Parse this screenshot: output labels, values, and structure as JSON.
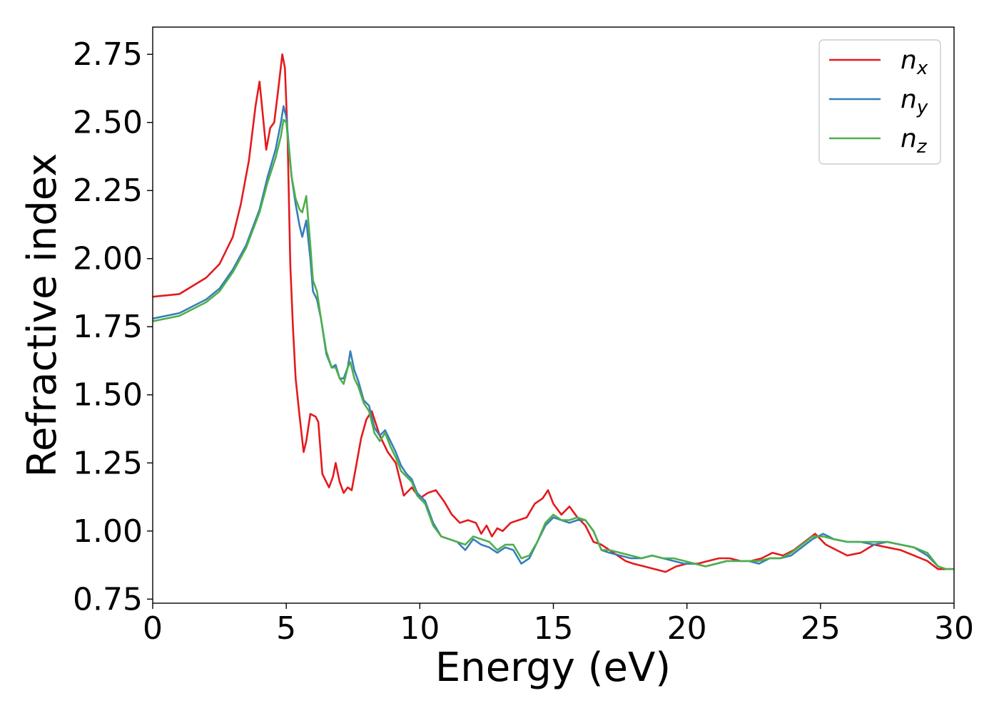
{
  "chart_data": {
    "type": "line",
    "xlabel": "Energy (eV)",
    "ylabel": "Refractive index",
    "xlim": [
      0,
      30
    ],
    "ylim": [
      0.735,
      2.85
    ],
    "xticks": [
      "0",
      "5",
      "10",
      "15",
      "20",
      "25",
      "30"
    ],
    "yticks": [
      "0.75",
      "1.00",
      "1.25",
      "1.50",
      "1.75",
      "2.00",
      "2.25",
      "2.50",
      "2.75"
    ],
    "grid": false,
    "legend_position": "top-right",
    "series": [
      {
        "name": "n",
        "subscript": "x",
        "color": "#e41a1c",
        "x": [
          0,
          1,
          2,
          2.5,
          3,
          3.3,
          3.6,
          3.85,
          4.0,
          4.1,
          4.25,
          4.4,
          4.55,
          4.7,
          4.85,
          4.95,
          5.05,
          5.15,
          5.25,
          5.35,
          5.5,
          5.65,
          5.75,
          5.9,
          6.1,
          6.2,
          6.35,
          6.5,
          6.6,
          6.75,
          6.85,
          7.0,
          7.15,
          7.3,
          7.45,
          7.6,
          7.8,
          8.0,
          8.2,
          8.5,
          8.8,
          9.1,
          9.4,
          9.7,
          10.0,
          10.3,
          10.6,
          10.9,
          11.2,
          11.5,
          11.8,
          12.1,
          12.3,
          12.5,
          12.7,
          12.9,
          13.1,
          13.4,
          13.7,
          14.0,
          14.3,
          14.6,
          14.8,
          15.0,
          15.3,
          15.6,
          15.9,
          16.2,
          16.5,
          16.8,
          17.1,
          17.4,
          17.7,
          18.0,
          18.4,
          18.8,
          19.2,
          19.6,
          20.0,
          20.4,
          20.8,
          21.2,
          21.6,
          22.0,
          22.4,
          22.8,
          23.2,
          23.6,
          24.0,
          24.4,
          24.8,
          25.2,
          25.6,
          26.0,
          26.5,
          27.0,
          27.5,
          28.0,
          28.5,
          29.0,
          29.4,
          29.7,
          30.0
        ],
        "y": [
          1.86,
          1.87,
          1.93,
          1.98,
          2.08,
          2.2,
          2.36,
          2.56,
          2.65,
          2.55,
          2.4,
          2.48,
          2.5,
          2.62,
          2.75,
          2.7,
          2.45,
          1.98,
          1.75,
          1.56,
          1.42,
          1.29,
          1.33,
          1.43,
          1.42,
          1.4,
          1.21,
          1.18,
          1.16,
          1.2,
          1.25,
          1.18,
          1.14,
          1.16,
          1.15,
          1.23,
          1.34,
          1.41,
          1.44,
          1.35,
          1.29,
          1.25,
          1.13,
          1.16,
          1.12,
          1.14,
          1.15,
          1.11,
          1.06,
          1.03,
          1.04,
          1.03,
          0.99,
          1.02,
          0.98,
          1.01,
          1.0,
          1.03,
          1.04,
          1.05,
          1.1,
          1.12,
          1.15,
          1.1,
          1.06,
          1.09,
          1.05,
          1.02,
          0.96,
          0.95,
          0.93,
          0.91,
          0.89,
          0.88,
          0.87,
          0.86,
          0.85,
          0.87,
          0.88,
          0.88,
          0.89,
          0.9,
          0.9,
          0.89,
          0.89,
          0.9,
          0.92,
          0.91,
          0.93,
          0.96,
          0.99,
          0.95,
          0.93,
          0.91,
          0.92,
          0.95,
          0.94,
          0.93,
          0.91,
          0.89,
          0.86,
          0.86,
          0.86
        ]
      },
      {
        "name": "n",
        "subscript": "y",
        "color": "#377eb8",
        "x": [
          0,
          1,
          2,
          2.5,
          3,
          3.5,
          4.0,
          4.3,
          4.6,
          4.8,
          4.9,
          5.0,
          5.1,
          5.2,
          5.35,
          5.5,
          5.6,
          5.75,
          5.9,
          6.0,
          6.15,
          6.3,
          6.5,
          6.7,
          6.85,
          7.0,
          7.15,
          7.3,
          7.4,
          7.55,
          7.7,
          7.9,
          8.1,
          8.3,
          8.5,
          8.7,
          8.9,
          9.1,
          9.3,
          9.5,
          9.7,
          9.9,
          10.2,
          10.5,
          10.8,
          11.1,
          11.4,
          11.7,
          12.0,
          12.3,
          12.6,
          12.9,
          13.2,
          13.5,
          13.8,
          14.1,
          14.4,
          14.7,
          15.0,
          15.3,
          15.6,
          15.9,
          16.2,
          16.5,
          16.8,
          17.1,
          17.5,
          17.9,
          18.3,
          18.7,
          19.1,
          19.5,
          19.9,
          20.3,
          20.7,
          21.1,
          21.5,
          21.9,
          22.3,
          22.7,
          23.1,
          23.5,
          23.9,
          24.3,
          24.7,
          25.1,
          25.5,
          26.0,
          26.5,
          27.0,
          27.5,
          28.0,
          28.5,
          29.0,
          29.4,
          29.7,
          30.0
        ],
        "y": [
          1.78,
          1.8,
          1.85,
          1.89,
          1.96,
          2.05,
          2.18,
          2.3,
          2.4,
          2.5,
          2.56,
          2.52,
          2.41,
          2.3,
          2.2,
          2.12,
          2.08,
          2.14,
          2.0,
          1.88,
          1.85,
          1.78,
          1.65,
          1.6,
          1.61,
          1.56,
          1.56,
          1.6,
          1.66,
          1.59,
          1.55,
          1.48,
          1.46,
          1.38,
          1.35,
          1.37,
          1.33,
          1.29,
          1.24,
          1.21,
          1.19,
          1.14,
          1.11,
          1.03,
          0.98,
          0.97,
          0.96,
          0.93,
          0.97,
          0.95,
          0.94,
          0.92,
          0.94,
          0.93,
          0.88,
          0.9,
          0.96,
          1.02,
          1.05,
          1.04,
          1.03,
          1.04,
          1.04,
          1.0,
          0.93,
          0.92,
          0.91,
          0.9,
          0.9,
          0.91,
          0.9,
          0.89,
          0.88,
          0.88,
          0.87,
          0.88,
          0.89,
          0.89,
          0.89,
          0.88,
          0.9,
          0.9,
          0.91,
          0.94,
          0.97,
          0.99,
          0.97,
          0.96,
          0.96,
          0.95,
          0.96,
          0.95,
          0.94,
          0.91,
          0.87,
          0.86,
          0.86
        ]
      },
      {
        "name": "n",
        "subscript": "z",
        "color": "#4daf4a",
        "x": [
          0,
          1,
          2,
          2.5,
          3,
          3.5,
          4.0,
          4.3,
          4.6,
          4.8,
          4.9,
          5.0,
          5.1,
          5.2,
          5.35,
          5.5,
          5.6,
          5.75,
          5.9,
          6.0,
          6.15,
          6.3,
          6.5,
          6.7,
          6.85,
          7.0,
          7.15,
          7.3,
          7.4,
          7.55,
          7.7,
          7.9,
          8.1,
          8.3,
          8.5,
          8.7,
          8.9,
          9.1,
          9.3,
          9.5,
          9.7,
          9.9,
          10.2,
          10.5,
          10.8,
          11.1,
          11.4,
          11.7,
          12.0,
          12.3,
          12.6,
          12.9,
          13.2,
          13.5,
          13.8,
          14.1,
          14.4,
          14.7,
          15.0,
          15.3,
          15.6,
          15.9,
          16.2,
          16.5,
          16.8,
          17.1,
          17.5,
          17.9,
          18.3,
          18.7,
          19.1,
          19.5,
          19.9,
          20.3,
          20.7,
          21.1,
          21.5,
          21.9,
          22.3,
          22.7,
          23.1,
          23.5,
          23.9,
          24.3,
          24.7,
          25.1,
          25.5,
          26.0,
          26.5,
          27.0,
          27.5,
          28.0,
          28.5,
          29.0,
          29.4,
          29.7,
          30.0
        ],
        "y": [
          1.77,
          1.79,
          1.84,
          1.88,
          1.95,
          2.04,
          2.17,
          2.28,
          2.37,
          2.45,
          2.51,
          2.5,
          2.4,
          2.3,
          2.22,
          2.18,
          2.17,
          2.23,
          2.05,
          1.92,
          1.88,
          1.78,
          1.66,
          1.6,
          1.6,
          1.56,
          1.54,
          1.6,
          1.62,
          1.56,
          1.53,
          1.47,
          1.44,
          1.36,
          1.33,
          1.36,
          1.31,
          1.27,
          1.22,
          1.2,
          1.18,
          1.13,
          1.1,
          1.02,
          0.98,
          0.97,
          0.96,
          0.95,
          0.98,
          0.97,
          0.96,
          0.93,
          0.95,
          0.95,
          0.9,
          0.91,
          0.96,
          1.03,
          1.06,
          1.04,
          1.04,
          1.05,
          1.04,
          1.0,
          0.93,
          0.93,
          0.92,
          0.91,
          0.9,
          0.91,
          0.9,
          0.9,
          0.89,
          0.88,
          0.87,
          0.88,
          0.89,
          0.89,
          0.89,
          0.89,
          0.9,
          0.9,
          0.92,
          0.95,
          0.98,
          0.98,
          0.97,
          0.96,
          0.96,
          0.96,
          0.96,
          0.95,
          0.94,
          0.92,
          0.87,
          0.86,
          0.86
        ]
      }
    ]
  }
}
